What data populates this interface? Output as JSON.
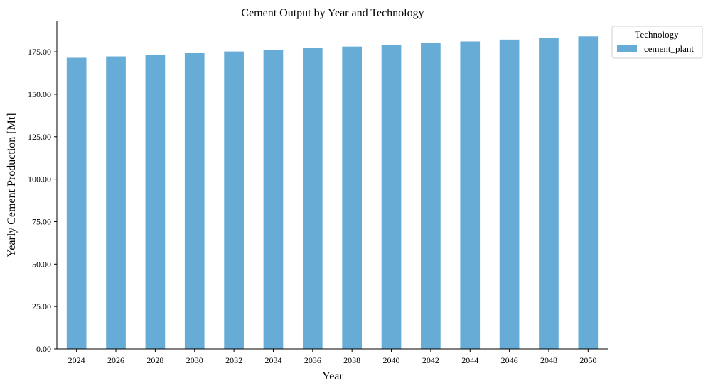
{
  "chart_data": {
    "type": "bar",
    "title": "Cement Output by Year and Technology",
    "xlabel": "Year",
    "ylabel": "Yearly Cement Production [Mt]",
    "categories": [
      "2024",
      "2026",
      "2028",
      "2030",
      "2032",
      "2034",
      "2036",
      "2038",
      "2040",
      "2042",
      "2044",
      "2046",
      "2048",
      "2050"
    ],
    "series": [
      {
        "name": "cement_plant",
        "values": [
          171.5,
          172.3,
          173.3,
          174.2,
          175.2,
          176.2,
          177.2,
          178.1,
          179.2,
          180.2,
          181.1,
          182.2,
          183.2,
          184.1
        ],
        "color": "#67acd6"
      }
    ],
    "ylim": [
      0,
      193
    ],
    "yticks": [
      0,
      25,
      50,
      75,
      100,
      125,
      150,
      175
    ],
    "ytick_labels": [
      "0.00",
      "25.00",
      "50.00",
      "75.00",
      "100.00",
      "125.00",
      "150.00",
      "175.00"
    ],
    "grid": false,
    "legend": {
      "title": "Technology",
      "placement": "outside top-right"
    }
  }
}
